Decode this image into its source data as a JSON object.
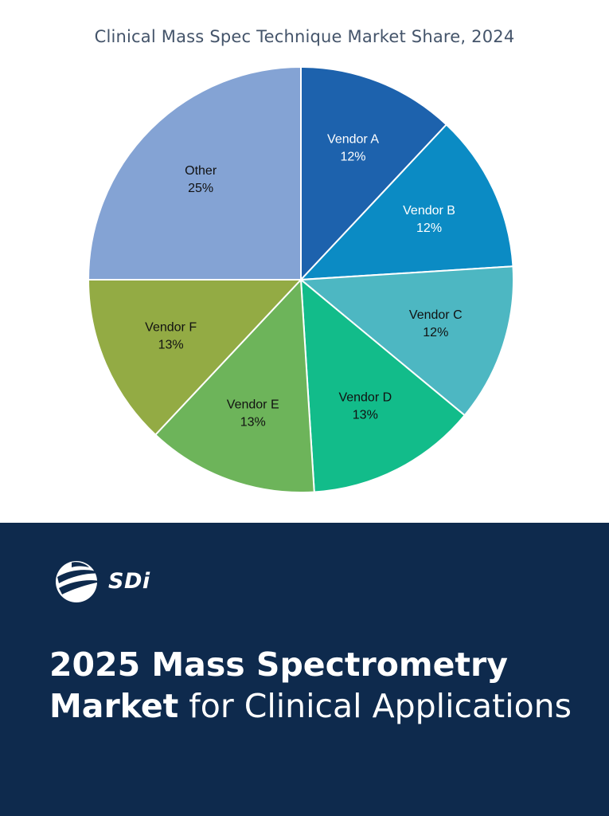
{
  "chart_data": {
    "type": "pie",
    "title": "Clinical Mass Spec Technique Market Share, 2024",
    "slices": [
      {
        "label": "Vendor A",
        "value": 12,
        "display": "12%",
        "color": "#1d62ad",
        "text_color": "#ffffff"
      },
      {
        "label": "Vendor B",
        "value": 12,
        "display": "12%",
        "color": "#0b8bc4",
        "text_color": "#ffffff"
      },
      {
        "label": "Vendor C",
        "value": 12,
        "display": "12%",
        "color": "#4db7c2",
        "text_color": "#111111"
      },
      {
        "label": "Vendor D",
        "value": 13,
        "display": "13%",
        "color": "#12bc8a",
        "text_color": "#111111"
      },
      {
        "label": "Vendor E",
        "value": 13,
        "display": "13%",
        "color": "#6db45a",
        "text_color": "#111111"
      },
      {
        "label": "Vendor F",
        "value": 13,
        "display": "13%",
        "color": "#93ab44",
        "text_color": "#111111"
      },
      {
        "label": "Other",
        "value": 25,
        "display": "25%",
        "color": "#84a3d4",
        "text_color": "#111111"
      }
    ]
  },
  "banner": {
    "logo_text": "SDi",
    "headline_bold_1": "2025 Mass Spectrometry",
    "headline_bold_2": "Market",
    "headline_light": " for Clinical Applications",
    "background_color": "#0e2a4d"
  }
}
